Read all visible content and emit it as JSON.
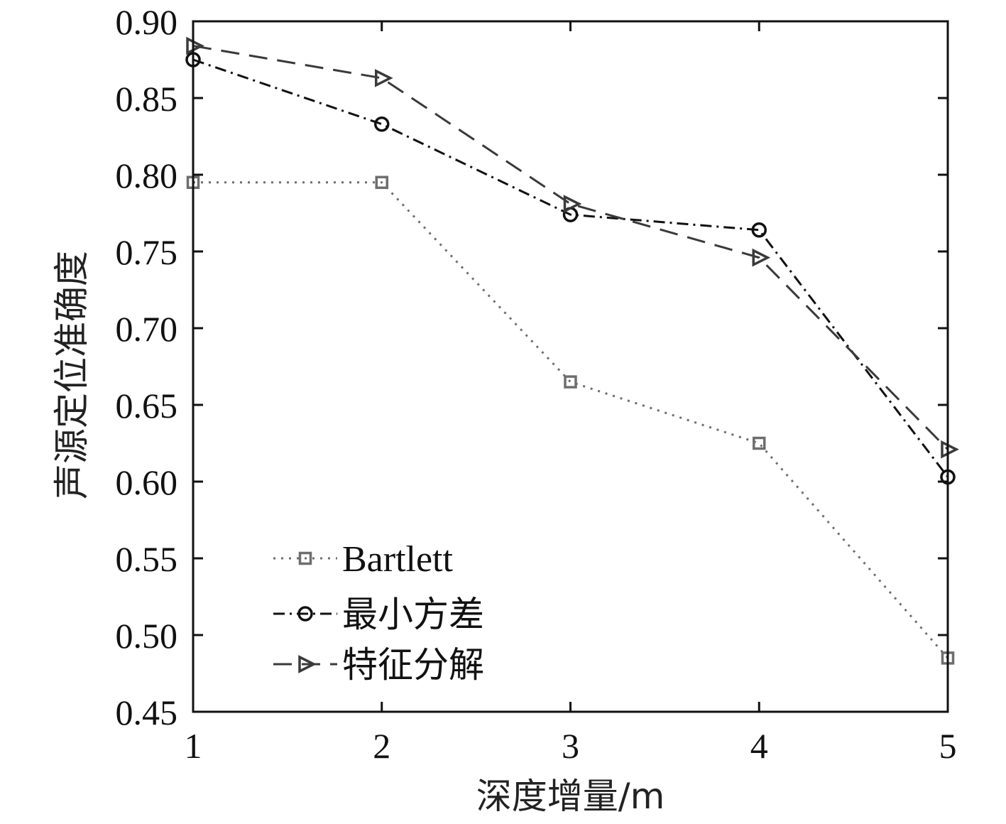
{
  "chart_data": {
    "type": "line",
    "title": "",
    "xlabel": "深度增量/m",
    "ylabel": "声源定位准确度",
    "x": [
      1,
      2,
      3,
      4,
      5
    ],
    "xlim": [
      1,
      5
    ],
    "ylim": [
      0.45,
      0.9
    ],
    "x_ticks": [
      "1",
      "2",
      "3",
      "4",
      "5"
    ],
    "y_ticks": [
      "0.45",
      "0.50",
      "0.55",
      "0.60",
      "0.65",
      "0.70",
      "0.75",
      "0.80",
      "0.85",
      "0.90"
    ],
    "grid": false,
    "legend_position": "bottom-left",
    "series": [
      {
        "name": "Bartlett",
        "values": [
          0.795,
          0.795,
          0.665,
          0.625,
          0.485
        ],
        "color": "#6e6e6e",
        "line_style": "dotted",
        "marker": "square"
      },
      {
        "name": "最小方差",
        "values": [
          0.875,
          0.833,
          0.774,
          0.764,
          0.603
        ],
        "color": "#111111",
        "line_style": "dash-dot",
        "marker": "circle"
      },
      {
        "name": "特征分解",
        "values": [
          0.884,
          0.863,
          0.781,
          0.746,
          0.621
        ],
        "color": "#3a3a3a",
        "line_style": "dashed",
        "marker": "triangle-right"
      }
    ]
  }
}
